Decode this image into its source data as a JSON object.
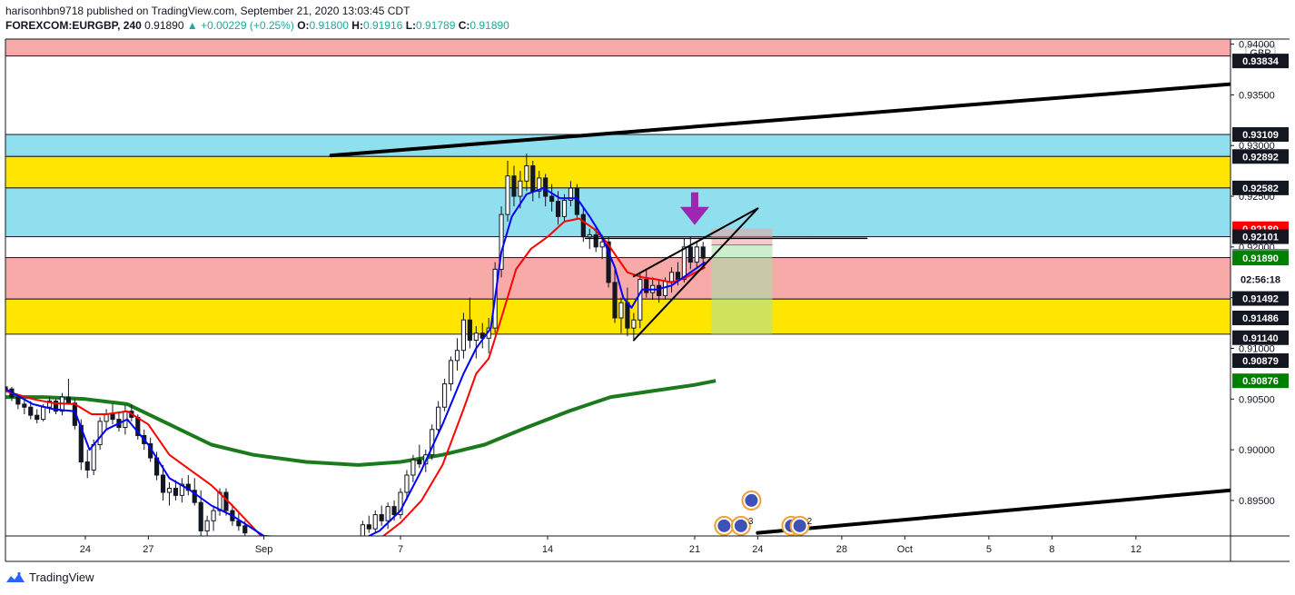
{
  "header": {
    "publisher_line": "harisonhbn9718 published on TradingView.com, September 21, 2020 13:03:45 CDT",
    "symbol": "FOREXCOM:EURGBP, 240",
    "last": "0.91890",
    "change": "▲ +0.00229 (+0.25%)",
    "o_label": "O:",
    "o_value": "0.91800",
    "h_label": "H:",
    "h_value": "0.91916",
    "l_label": "L:",
    "l_value": "0.91789",
    "c_label": "C:",
    "c_value": "0.91890"
  },
  "footer": {
    "brand": "TradingView"
  },
  "chart_data": {
    "type": "candlestick",
    "currency": "GBP",
    "y_axis_ticks": [
      "0.94000",
      "0.93500",
      "0.93000",
      "0.92500",
      "0.92000",
      "0.91500",
      "0.91000",
      "0.90500",
      "0.90000",
      "0.89500"
    ],
    "ylim": [
      0.8915,
      0.9405
    ],
    "x_axis_ticks": [
      {
        "label": "24",
        "t": 23
      },
      {
        "label": "27",
        "t": 26
      },
      {
        "label": "Sep",
        "t": 31.5
      },
      {
        "label": "7",
        "t": 38
      },
      {
        "label": "14",
        "t": 45
      },
      {
        "label": "21",
        "t": 52
      },
      {
        "label": "24",
        "t": 55
      },
      {
        "label": "28",
        "t": 59
      },
      {
        "label": "Oct",
        "t": 62
      },
      {
        "label": "5",
        "t": 66
      },
      {
        "label": "8",
        "t": 69
      },
      {
        "label": "12",
        "t": 73
      }
    ],
    "xlim": [
      19.2,
      77.5
    ],
    "zones": [
      {
        "name": "supply-zone-top",
        "from": 0.93883,
        "to": 0.94065,
        "color": "#f7aaa8"
      },
      {
        "name": "cyan-zone-upper",
        "from": 0.92892,
        "to": 0.93109,
        "color": "#90dfee"
      },
      {
        "name": "yellow-zone-upper",
        "from": 0.92582,
        "to": 0.92892,
        "color": "#ffe500"
      },
      {
        "name": "cyan-zone-lower",
        "from": 0.92101,
        "to": 0.92582,
        "color": "#90dfee"
      },
      {
        "name": "pink-zone-lower",
        "from": 0.91486,
        "to": 0.91895,
        "color": "#f7aaa8"
      },
      {
        "name": "yellow-zone-lower",
        "from": 0.9114,
        "to": 0.91486,
        "color": "#ffe500"
      }
    ],
    "price_labels": [
      {
        "value": "0.93834",
        "y": 0.93834,
        "bg": "#131722",
        "fg": "#ffffff"
      },
      {
        "value": "0.93109",
        "y": 0.93109,
        "bg": "#131722",
        "fg": "#ffffff"
      },
      {
        "value": "0.92892",
        "y": 0.92892,
        "bg": "#131722",
        "fg": "#ffffff"
      },
      {
        "value": "0.92582",
        "y": 0.92582,
        "bg": "#131722",
        "fg": "#ffffff"
      },
      {
        "value": "0.92180",
        "y": 0.9218,
        "bg": "#ff0000",
        "fg": "#ffffff"
      },
      {
        "value": "0.92101",
        "y": 0.92101,
        "bg": "#131722",
        "fg": "#ffffff"
      },
      {
        "value": "0.91909",
        "y": 0.91909,
        "bg": "#787b86",
        "fg": "#ffffff"
      },
      {
        "value": "0.91890",
        "y": 0.9189,
        "bg": "#008000",
        "fg": "#ffffff"
      },
      {
        "value": "02:56:18",
        "y": 0.9168,
        "bg": "#ffffff",
        "fg": "#131722"
      },
      {
        "value": "0.91492",
        "y": 0.91492,
        "bg": "#131722",
        "fg": "#ffffff"
      },
      {
        "value": "0.91486",
        "y": 0.913,
        "bg": "#131722",
        "fg": "#ffffff"
      },
      {
        "value": "0.91140",
        "y": 0.91105,
        "bg": "#131722",
        "fg": "#ffffff"
      },
      {
        "value": "0.90879",
        "y": 0.90879,
        "bg": "#131722",
        "fg": "#ffffff"
      },
      {
        "value": "0.90876",
        "y": 0.9068,
        "bg": "#008000",
        "fg": "#ffffff"
      }
    ],
    "candles": [
      [
        19.2,
        0.9062,
        0.9068,
        0.9054,
        0.906
      ],
      [
        19.5,
        0.906,
        0.9062,
        0.9048,
        0.9052
      ],
      [
        19.8,
        0.9052,
        0.9055,
        0.904,
        0.9045
      ],
      [
        20.1,
        0.9045,
        0.905,
        0.9035,
        0.9042
      ],
      [
        20.4,
        0.9042,
        0.9048,
        0.903,
        0.9034
      ],
      [
        20.7,
        0.9034,
        0.904,
        0.9026,
        0.903
      ],
      [
        21.0,
        0.903,
        0.9045,
        0.9028,
        0.9042
      ],
      [
        21.3,
        0.9042,
        0.9052,
        0.9036,
        0.9048
      ],
      [
        21.6,
        0.9048,
        0.905,
        0.9035,
        0.9038
      ],
      [
        21.9,
        0.9038,
        0.9056,
        0.9034,
        0.9052
      ],
      [
        22.2,
        0.9052,
        0.907,
        0.9045,
        0.9046
      ],
      [
        22.5,
        0.9046,
        0.905,
        0.902,
        0.9024
      ],
      [
        22.8,
        0.9024,
        0.903,
        0.898,
        0.8988
      ],
      [
        23.1,
        0.8988,
        0.9,
        0.8972,
        0.898
      ],
      [
        23.4,
        0.898,
        0.901,
        0.8975,
        0.9005
      ],
      [
        23.7,
        0.9005,
        0.9032,
        0.9,
        0.9028
      ],
      [
        24.0,
        0.9028,
        0.904,
        0.902,
        0.9035
      ],
      [
        24.3,
        0.9035,
        0.9045,
        0.9025,
        0.903
      ],
      [
        24.6,
        0.903,
        0.9038,
        0.9018,
        0.9022
      ],
      [
        24.9,
        0.9022,
        0.9044,
        0.9015,
        0.9038
      ],
      [
        25.2,
        0.9038,
        0.9045,
        0.9028,
        0.9032
      ],
      [
        25.5,
        0.9032,
        0.9035,
        0.901,
        0.9014
      ],
      [
        25.8,
        0.9014,
        0.902,
        0.9,
        0.9006
      ],
      [
        26.1,
        0.9006,
        0.9012,
        0.8988,
        0.8992
      ],
      [
        26.4,
        0.8992,
        0.8998,
        0.897,
        0.8975
      ],
      [
        26.7,
        0.8975,
        0.8985,
        0.895,
        0.8958
      ],
      [
        27.0,
        0.8958,
        0.8968,
        0.8945,
        0.8962
      ],
      [
        27.3,
        0.8962,
        0.897,
        0.895,
        0.8955
      ],
      [
        27.6,
        0.8955,
        0.8972,
        0.8948,
        0.8966
      ],
      [
        27.9,
        0.8966,
        0.8975,
        0.8955,
        0.896
      ],
      [
        28.2,
        0.896,
        0.8972,
        0.8945,
        0.8948
      ],
      [
        28.5,
        0.8948,
        0.896,
        0.8915,
        0.892
      ],
      [
        28.8,
        0.892,
        0.8935,
        0.8915,
        0.893
      ],
      [
        29.1,
        0.893,
        0.8945,
        0.892,
        0.894
      ],
      [
        29.4,
        0.894,
        0.8962,
        0.8935,
        0.8958
      ],
      [
        29.7,
        0.8958,
        0.8962,
        0.8935,
        0.894
      ],
      [
        30.0,
        0.894,
        0.8946,
        0.8925,
        0.893
      ],
      [
        30.3,
        0.893,
        0.8938,
        0.892,
        0.8925
      ],
      [
        30.6,
        0.8925,
        0.893,
        0.8912,
        0.8918
      ],
      [
        36.2,
        0.8915,
        0.893,
        0.8912,
        0.8926
      ],
      [
        36.5,
        0.8926,
        0.8935,
        0.8918,
        0.8922
      ],
      [
        36.8,
        0.8922,
        0.894,
        0.8918,
        0.8936
      ],
      [
        37.1,
        0.8936,
        0.8945,
        0.8925,
        0.893
      ],
      [
        37.4,
        0.893,
        0.8948,
        0.8922,
        0.8944
      ],
      [
        37.7,
        0.8944,
        0.895,
        0.893,
        0.8936
      ],
      [
        38.0,
        0.8936,
        0.8962,
        0.8932,
        0.8958
      ],
      [
        38.3,
        0.8958,
        0.898,
        0.895,
        0.8975
      ],
      [
        38.6,
        0.8975,
        0.8995,
        0.8968,
        0.899
      ],
      [
        38.9,
        0.899,
        0.9005,
        0.8982,
        0.8986
      ],
      [
        39.2,
        0.8986,
        0.9,
        0.8978,
        0.8995
      ],
      [
        39.5,
        0.8995,
        0.9025,
        0.899,
        0.902
      ],
      [
        39.8,
        0.902,
        0.9048,
        0.9015,
        0.9042
      ],
      [
        40.1,
        0.9042,
        0.907,
        0.9038,
        0.9065
      ],
      [
        40.4,
        0.9065,
        0.9092,
        0.9058,
        0.9088
      ],
      [
        40.7,
        0.9088,
        0.911,
        0.9078,
        0.9098
      ],
      [
        41.0,
        0.9098,
        0.9135,
        0.909,
        0.9128
      ],
      [
        41.3,
        0.9128,
        0.915,
        0.91,
        0.9108
      ],
      [
        41.6,
        0.9108,
        0.9122,
        0.909,
        0.9115
      ],
      [
        41.9,
        0.9115,
        0.9125,
        0.91,
        0.911
      ],
      [
        42.2,
        0.911,
        0.913,
        0.9095,
        0.912
      ],
      [
        42.5,
        0.912,
        0.9185,
        0.9115,
        0.9178
      ],
      [
        42.8,
        0.9178,
        0.924,
        0.917,
        0.9232
      ],
      [
        43.1,
        0.9232,
        0.9285,
        0.9225,
        0.927
      ],
      [
        43.4,
        0.927,
        0.928,
        0.924,
        0.925
      ],
      [
        43.7,
        0.925,
        0.9275,
        0.9238,
        0.9265
      ],
      [
        44.0,
        0.9265,
        0.9292,
        0.9255,
        0.928
      ],
      [
        44.3,
        0.928,
        0.9285,
        0.9245,
        0.9255
      ],
      [
        44.6,
        0.9255,
        0.9275,
        0.9248,
        0.9268
      ],
      [
        44.9,
        0.9268,
        0.9272,
        0.924,
        0.925
      ],
      [
        45.2,
        0.925,
        0.9262,
        0.9235,
        0.9245
      ],
      [
        45.5,
        0.9245,
        0.9255,
        0.9222,
        0.923
      ],
      [
        45.8,
        0.923,
        0.9252,
        0.9225,
        0.9246
      ],
      [
        46.1,
        0.9246,
        0.9265,
        0.924,
        0.9258
      ],
      [
        46.4,
        0.9258,
        0.9262,
        0.9228,
        0.9232
      ],
      [
        46.7,
        0.9232,
        0.9238,
        0.9205,
        0.921
      ],
      [
        47.0,
        0.921,
        0.9218,
        0.9198,
        0.9212
      ],
      [
        47.3,
        0.9212,
        0.922,
        0.9195,
        0.92
      ],
      [
        47.6,
        0.92,
        0.9212,
        0.9188,
        0.9205
      ],
      [
        47.9,
        0.9205,
        0.921,
        0.916,
        0.9165
      ],
      [
        48.2,
        0.9165,
        0.918,
        0.9125,
        0.913
      ],
      [
        48.5,
        0.913,
        0.915,
        0.9115,
        0.9145
      ],
      [
        48.8,
        0.9145,
        0.916,
        0.9112,
        0.912
      ],
      [
        49.1,
        0.912,
        0.9135,
        0.9108,
        0.9128
      ],
      [
        49.4,
        0.9128,
        0.9175,
        0.912,
        0.9168
      ],
      [
        49.7,
        0.9168,
        0.9178,
        0.915,
        0.9155
      ],
      [
        50.0,
        0.9155,
        0.917,
        0.9148,
        0.9162
      ],
      [
        50.3,
        0.9162,
        0.9168,
        0.9145,
        0.9152
      ],
      [
        50.6,
        0.9152,
        0.917,
        0.9148,
        0.9166
      ],
      [
        50.9,
        0.9166,
        0.918,
        0.9155,
        0.9175
      ],
      [
        51.2,
        0.9175,
        0.9185,
        0.9162,
        0.9168
      ],
      [
        51.5,
        0.9168,
        0.9208,
        0.9165,
        0.92
      ],
      [
        51.8,
        0.92,
        0.921,
        0.9178,
        0.9185
      ],
      [
        52.1,
        0.9185,
        0.9205,
        0.918,
        0.92
      ],
      [
        52.4,
        0.92,
        0.9205,
        0.9178,
        0.9189
      ]
    ],
    "ema_blue": [
      [
        19.2,
        0.906
      ],
      [
        20.5,
        0.9045
      ],
      [
        21.5,
        0.904
      ],
      [
        22.5,
        0.9038
      ],
      [
        23.2,
        0.9
      ],
      [
        24.0,
        0.902
      ],
      [
        25.0,
        0.903
      ],
      [
        26.0,
        0.9005
      ],
      [
        27.0,
        0.8972
      ],
      [
        28.0,
        0.896
      ],
      [
        29.0,
        0.8945
      ],
      [
        30.0,
        0.8935
      ],
      [
        31.5,
        0.8915
      ],
      [
        36.0,
        0.891
      ],
      [
        37.0,
        0.892
      ],
      [
        38.0,
        0.894
      ],
      [
        39.0,
        0.898
      ],
      [
        40.0,
        0.9025
      ],
      [
        41.0,
        0.9075
      ],
      [
        41.6,
        0.91
      ],
      [
        42.3,
        0.912
      ],
      [
        42.8,
        0.9195
      ],
      [
        43.3,
        0.923
      ],
      [
        44.0,
        0.9252
      ],
      [
        44.8,
        0.9258
      ],
      [
        45.6,
        0.9248
      ],
      [
        46.4,
        0.9248
      ],
      [
        47.0,
        0.923
      ],
      [
        47.6,
        0.921
      ],
      [
        48.2,
        0.918
      ],
      [
        48.6,
        0.915
      ],
      [
        49.0,
        0.914
      ],
      [
        49.5,
        0.9158
      ],
      [
        50.2,
        0.9158
      ],
      [
        50.9,
        0.9162
      ],
      [
        51.6,
        0.9172
      ],
      [
        52.5,
        0.9185
      ]
    ],
    "ema_red": [
      [
        19.2,
        0.9058
      ],
      [
        20.5,
        0.905
      ],
      [
        21.5,
        0.9046
      ],
      [
        22.5,
        0.9045
      ],
      [
        23.3,
        0.9035
      ],
      [
        24.0,
        0.9035
      ],
      [
        25.0,
        0.9038
      ],
      [
        26.0,
        0.9025
      ],
      [
        27.0,
        0.8995
      ],
      [
        28.0,
        0.898
      ],
      [
        29.0,
        0.8965
      ],
      [
        30.0,
        0.8945
      ],
      [
        31.5,
        0.8912
      ],
      [
        36.0,
        0.8905
      ],
      [
        37.0,
        0.8912
      ],
      [
        38.0,
        0.8928
      ],
      [
        39.0,
        0.895
      ],
      [
        40.0,
        0.8985
      ],
      [
        41.0,
        0.904
      ],
      [
        41.6,
        0.9075
      ],
      [
        42.2,
        0.909
      ],
      [
        42.8,
        0.913
      ],
      [
        43.5,
        0.9178
      ],
      [
        44.2,
        0.9198
      ],
      [
        45.0,
        0.921
      ],
      [
        45.8,
        0.9225
      ],
      [
        46.5,
        0.9228
      ],
      [
        47.2,
        0.9218
      ],
      [
        47.8,
        0.9205
      ],
      [
        48.3,
        0.919
      ],
      [
        48.8,
        0.9175
      ],
      [
        49.5,
        0.917
      ],
      [
        50.2,
        0.9168
      ],
      [
        50.9,
        0.9165
      ],
      [
        51.6,
        0.917
      ],
      [
        52.5,
        0.918
      ]
    ],
    "sma_green": [
      [
        19.2,
        0.9052
      ],
      [
        21.0,
        0.9052
      ],
      [
        23.0,
        0.905
      ],
      [
        25.0,
        0.9045
      ],
      [
        27.0,
        0.9025
      ],
      [
        29.0,
        0.9005
      ],
      [
        31.0,
        0.8995
      ],
      [
        33.5,
        0.8988
      ],
      [
        36.0,
        0.8985
      ],
      [
        38.0,
        0.8988
      ],
      [
        40.0,
        0.8995
      ],
      [
        42.0,
        0.9005
      ],
      [
        44.0,
        0.9022
      ],
      [
        46.0,
        0.9038
      ],
      [
        48.0,
        0.9052
      ],
      [
        50.0,
        0.9058
      ],
      [
        52.0,
        0.9064
      ],
      [
        53.0,
        0.9068
      ]
    ],
    "trendlines": [
      {
        "name": "upper-channel-line",
        "from": [
          34.7,
          0.92902
        ],
        "to": [
          77.5,
          0.93605
        ],
        "width": 4
      },
      {
        "name": "lower-channel-line",
        "from": [
          55.0,
          0.8918
        ],
        "to": [
          77.5,
          0.896
        ],
        "width": 4
      },
      {
        "name": "neckline",
        "from": [
          46.8,
          0.92085
        ],
        "to": [
          60.2,
          0.92085
        ],
        "width": 1.5
      },
      {
        "name": "wedge-lower-line",
        "from": [
          49.1,
          0.9108
        ],
        "to": [
          55.0,
          0.9238
        ],
        "width": 2
      },
      {
        "name": "wedge-upper-line",
        "from": [
          49.1,
          0.9171
        ],
        "to": [
          55.0,
          0.9238
        ],
        "width": 2
      }
    ],
    "position_tool": {
      "from_t": 52.8,
      "to_t": 55.7,
      "entry": 0.9202,
      "stop": 0.9218,
      "target": 0.9114,
      "loss_color": "#f0a0a0",
      "profit_color": "#a6e2a6"
    },
    "arrow": {
      "t": 52.0,
      "price": 0.9218,
      "color": "#9c27b0"
    },
    "events": [
      {
        "t": 54.7,
        "price": 0.895,
        "count": ""
      },
      {
        "t": 53.4,
        "price": 0.8925,
        "count": ""
      },
      {
        "t": 54.2,
        "price": 0.8925,
        "count": "3"
      },
      {
        "t": 56.6,
        "price": 0.8925,
        "count": ""
      },
      {
        "t": 57.0,
        "price": 0.8925,
        "count": "2"
      }
    ]
  }
}
